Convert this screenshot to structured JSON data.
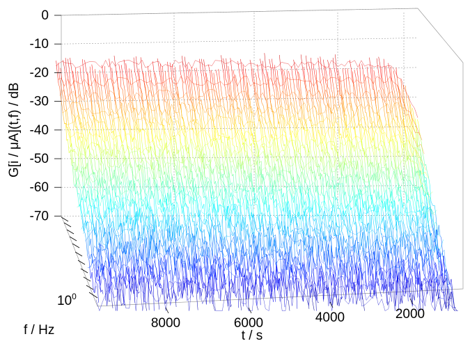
{
  "chart_data": {
    "type": "surface",
    "title": "",
    "zlabel": "G[i / μA](t,f) / dB",
    "xlabel": "t / s",
    "ylabel": "f / Hz",
    "zlim": [
      -80,
      0
    ],
    "z_ticks": [
      "0",
      "-10",
      "-20",
      "-30",
      "-40",
      "-50",
      "-60",
      "-70"
    ],
    "z_tick_values": [
      0,
      -10,
      -20,
      -30,
      -40,
      -50,
      -60,
      -70
    ],
    "t_ticks": [
      "8000",
      "6000",
      "4000",
      "2000"
    ],
    "t_tick_values": [
      8000,
      6000,
      4000,
      2000
    ],
    "f_tick": {
      "base": "10",
      "exponent": "0"
    },
    "grid": true,
    "colormap": "jet",
    "surface_profile": {
      "description_free": true,
      "low_freq_level_db": -17,
      "high_freq_level_db": -75,
      "t_range": [
        0,
        9500
      ]
    }
  }
}
